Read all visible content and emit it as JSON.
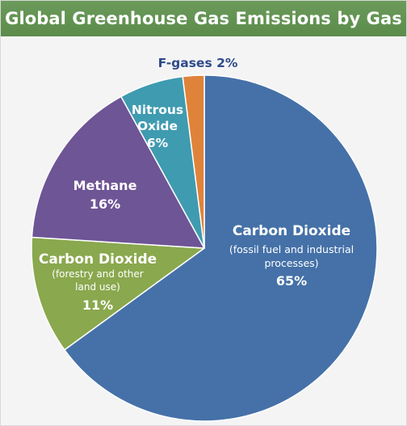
{
  "header": {
    "background": "#6b9a5b"
  },
  "chart_data": {
    "type": "pie",
    "title": "Global Greenhouse Gas Emissions by Gas",
    "slices": [
      {
        "name": "Carbon Dioxide",
        "note": "(fossil fuel and industrial processes)",
        "value": 65,
        "pct_label": "65%",
        "color": "#4571a8"
      },
      {
        "name": "Carbon Dioxide",
        "note": "(forestry and other land use)",
        "value": 11,
        "pct_label": "11%",
        "color": "#8aa84e"
      },
      {
        "name": "Methane",
        "note": "",
        "value": 16,
        "pct_label": "16%",
        "color": "#6e5596"
      },
      {
        "name": "Nitrous Oxide",
        "note": "",
        "value": 6,
        "pct_label": "6%",
        "color": "#3f9bb0"
      },
      {
        "name": "F-gases",
        "note": "",
        "value": 2,
        "pct_label": "2%",
        "color": "#e0833a"
      }
    ],
    "labels": {
      "co2_fossil": {
        "line1": "Carbon Dioxide",
        "line2": "(fossil fuel and industrial",
        "line3": "processes)",
        "pct": "65%"
      },
      "co2_forestry": {
        "line1": "Carbon Dioxide",
        "line2": "(forestry and other",
        "line3": "land use)",
        "pct": "11%"
      },
      "methane": {
        "line1": "Methane",
        "pct": "16%"
      },
      "nitrous": {
        "line1": "Nitrous",
        "line2": "Oxide",
        "pct": "6%"
      },
      "fgases": {
        "text": "F-gases 2%",
        "color": "#2e4a8a"
      }
    }
  }
}
